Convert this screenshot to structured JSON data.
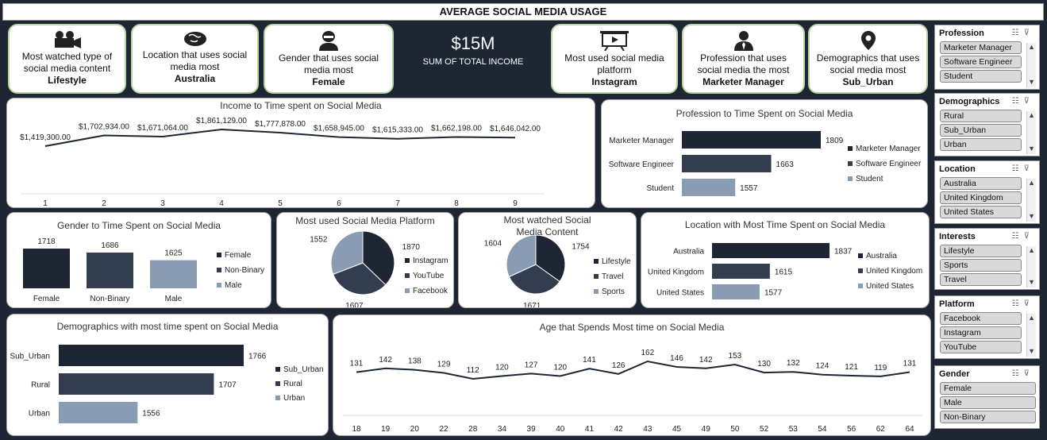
{
  "title": "AVERAGE SOCIAL MEDIA USAGE",
  "cards": {
    "content": {
      "label": "Most watched type of social media content",
      "value": "Lifestyle",
      "icon": "video-camera-icon"
    },
    "location": {
      "label": "Location that uses social media most",
      "value": "Australia",
      "icon": "globe-icon"
    },
    "gender": {
      "label": "Gender that uses social media most",
      "value": "Female",
      "icon": "person-icon"
    },
    "platform": {
      "label": "Most used social media platform",
      "value": "Instagram",
      "icon": "presentation-board-icon"
    },
    "profession": {
      "label": "Profession that uses social media the most",
      "value": "Marketer Manager",
      "icon": "businessman-icon"
    },
    "demographics": {
      "label": "Demographics that uses social media most",
      "value": "Sub_Urban",
      "icon": "map-pin-icon"
    }
  },
  "income": {
    "value": "$15M",
    "label": "SUM OF TOTAL INCOME"
  },
  "income_time": {
    "title": "Income to Time spent on Social Media",
    "x": [
      "1",
      "2",
      "3",
      "4",
      "5",
      "6",
      "7",
      "8",
      "9"
    ],
    "values": [
      1419300,
      1702934,
      1671064,
      1861129,
      1777878,
      1658945,
      1615333,
      1662198,
      1646042
    ],
    "labels": [
      "$1,419,300.00",
      "$1,702,934.00",
      "$1,671,064.00",
      "$1,861,129.00",
      "$1,777,878.00",
      "$1,658,945.00",
      "$1,615,333.00",
      "$1,662,198.00",
      "$1,646,042.00"
    ]
  },
  "profession_time": {
    "title": "Profession to Time Spent on Social Media",
    "categories": [
      "Marketer Manager",
      "Software Engineer",
      "Student"
    ],
    "values": [
      1809,
      1663,
      1557
    ],
    "colors": [
      "#1f2633",
      "#333d50",
      "#8a9bb4"
    ]
  },
  "gender_time": {
    "title": "Gender to Time Spent on Social Media",
    "categories": [
      "Female",
      "Non-Binary",
      "Male"
    ],
    "values": [
      1718,
      1686,
      1625
    ],
    "colors": [
      "#1f2633",
      "#333d50",
      "#8a9bb4"
    ]
  },
  "platform_pie": {
    "title": "Most used Social Media Platform",
    "categories": [
      "Instagram",
      "YouTube",
      "Facebook"
    ],
    "values": [
      1870,
      1607,
      1552
    ],
    "colors": [
      "#1f2633",
      "#333d50",
      "#8a9bb4"
    ]
  },
  "content_pie": {
    "title": "Most watched Social Media Content",
    "categories": [
      "Lifestyle",
      "Travel",
      "Sports"
    ],
    "values": [
      1754,
      1671,
      1604
    ],
    "colors": [
      "#1f2633",
      "#333d50",
      "#8a9bb4"
    ]
  },
  "location_time": {
    "title": "Location with Most Time Spent on Social Media",
    "categories": [
      "Australia",
      "United Kingdom",
      "United States"
    ],
    "values": [
      1837,
      1615,
      1577
    ],
    "colors": [
      "#1f2633",
      "#333d50",
      "#8a9bb4"
    ]
  },
  "demographics_time": {
    "title": "Demographics with most time spent on Social Media",
    "categories": [
      "Sub_Urban",
      "Rural",
      "Urban"
    ],
    "values": [
      1766,
      1707,
      1556
    ],
    "colors": [
      "#1f2633",
      "#333d50",
      "#8a9bb4"
    ]
  },
  "age_time": {
    "title": "Age that Spends Most time on Social Media",
    "x": [
      "18",
      "19",
      "20",
      "22",
      "28",
      "34",
      "39",
      "40",
      "41",
      "42",
      "43",
      "45",
      "49",
      "50",
      "52",
      "53",
      "54",
      "56",
      "62",
      "64"
    ],
    "values": [
      131,
      142,
      138,
      129,
      112,
      120,
      127,
      120,
      141,
      126,
      162,
      146,
      142,
      153,
      130,
      132,
      124,
      121,
      119,
      131
    ]
  },
  "slicers": [
    {
      "title": "Profession",
      "items": [
        "Marketer Manager",
        "Software Engineer",
        "Student"
      ]
    },
    {
      "title": "Demographics",
      "items": [
        "Rural",
        "Sub_Urban",
        "Urban"
      ]
    },
    {
      "title": "Location",
      "items": [
        "Australia",
        "United Kingdom",
        "United States"
      ]
    },
    {
      "title": "Interests",
      "items": [
        "Lifestyle",
        "Sports",
        "Travel"
      ]
    },
    {
      "title": "Platform",
      "items": [
        "Facebook",
        "Instagram",
        "YouTube"
      ]
    },
    {
      "title": "Gender",
      "items": [
        "Female",
        "Male",
        "Non-Binary"
      ]
    }
  ]
}
